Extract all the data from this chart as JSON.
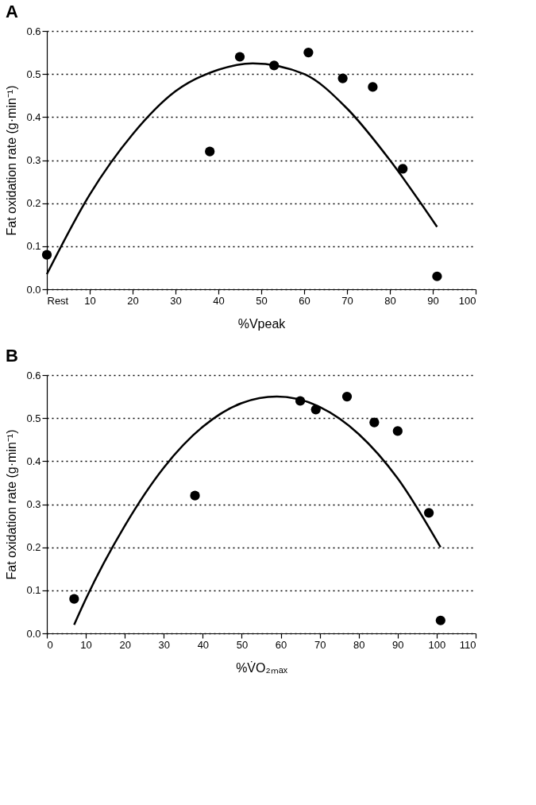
{
  "chart_data": [
    {
      "type": "scatter",
      "title": "A",
      "xlabel": "%Vpeak",
      "ylabel": "Fat oxidation rate (g·min⁻¹)",
      "xlim": [
        0,
        100
      ],
      "xticks": [
        {
          "value": 0,
          "label": "Rest"
        },
        10,
        20,
        30,
        40,
        50,
        60,
        70,
        80,
        90,
        100
      ],
      "ylim": [
        0,
        0.6
      ],
      "yticks": [
        {
          "value": 0,
          "label": "0.0"
        },
        0.1,
        0.2,
        0.3,
        0.4,
        0.5,
        0.6
      ],
      "grid": "y",
      "line_style": "dotted",
      "series": [
        {
          "color": "#000000",
          "marker": "circle",
          "x": [
            0,
            38,
            45,
            53,
            61,
            69,
            76,
            83,
            91
          ],
          "values": [
            0.08,
            0.32,
            0.54,
            0.52,
            0.55,
            0.49,
            0.47,
            0.28,
            0.03
          ]
        },
        {
          "type": "line",
          "color": "#000000",
          "line_style": "solid",
          "x": [
            0,
            10,
            20,
            30,
            40,
            48,
            60,
            70,
            80,
            91
          ],
          "values": [
            0.035,
            0.22,
            0.36,
            0.46,
            0.51,
            0.525,
            0.5,
            0.42,
            0.3,
            0.145
          ]
        }
      ]
    },
    {
      "type": "scatter",
      "title": "B",
      "xlabel": "%V̇O₂ₘₐₓ",
      "ylabel": "Fat oxidation rate (g·min⁻¹)",
      "xlim": [
        0,
        110
      ],
      "xticks": [
        0,
        10,
        20,
        30,
        40,
        50,
        60,
        70,
        80,
        90,
        100,
        110
      ],
      "ylim": [
        0,
        0.6
      ],
      "yticks": [
        {
          "value": 0,
          "label": "0.0"
        },
        0.1,
        0.2,
        0.3,
        0.4,
        0.5,
        0.6
      ],
      "grid": "y",
      "line_style": "dotted",
      "series": [
        {
          "color": "#000000",
          "marker": "circle",
          "x": [
            7,
            38,
            65,
            69,
            77,
            84,
            90,
            98,
            101
          ],
          "values": [
            0.08,
            0.32,
            0.54,
            0.52,
            0.55,
            0.49,
            0.47,
            0.28,
            0.03
          ]
        },
        {
          "type": "line",
          "color": "#000000",
          "line_style": "solid",
          "x": [
            7,
            10,
            20,
            30,
            40,
            50,
            59,
            70,
            80,
            90,
            101
          ],
          "values": [
            0.02,
            0.08,
            0.25,
            0.385,
            0.48,
            0.535,
            0.55,
            0.526,
            0.463,
            0.36,
            0.2
          ]
        }
      ]
    }
  ]
}
